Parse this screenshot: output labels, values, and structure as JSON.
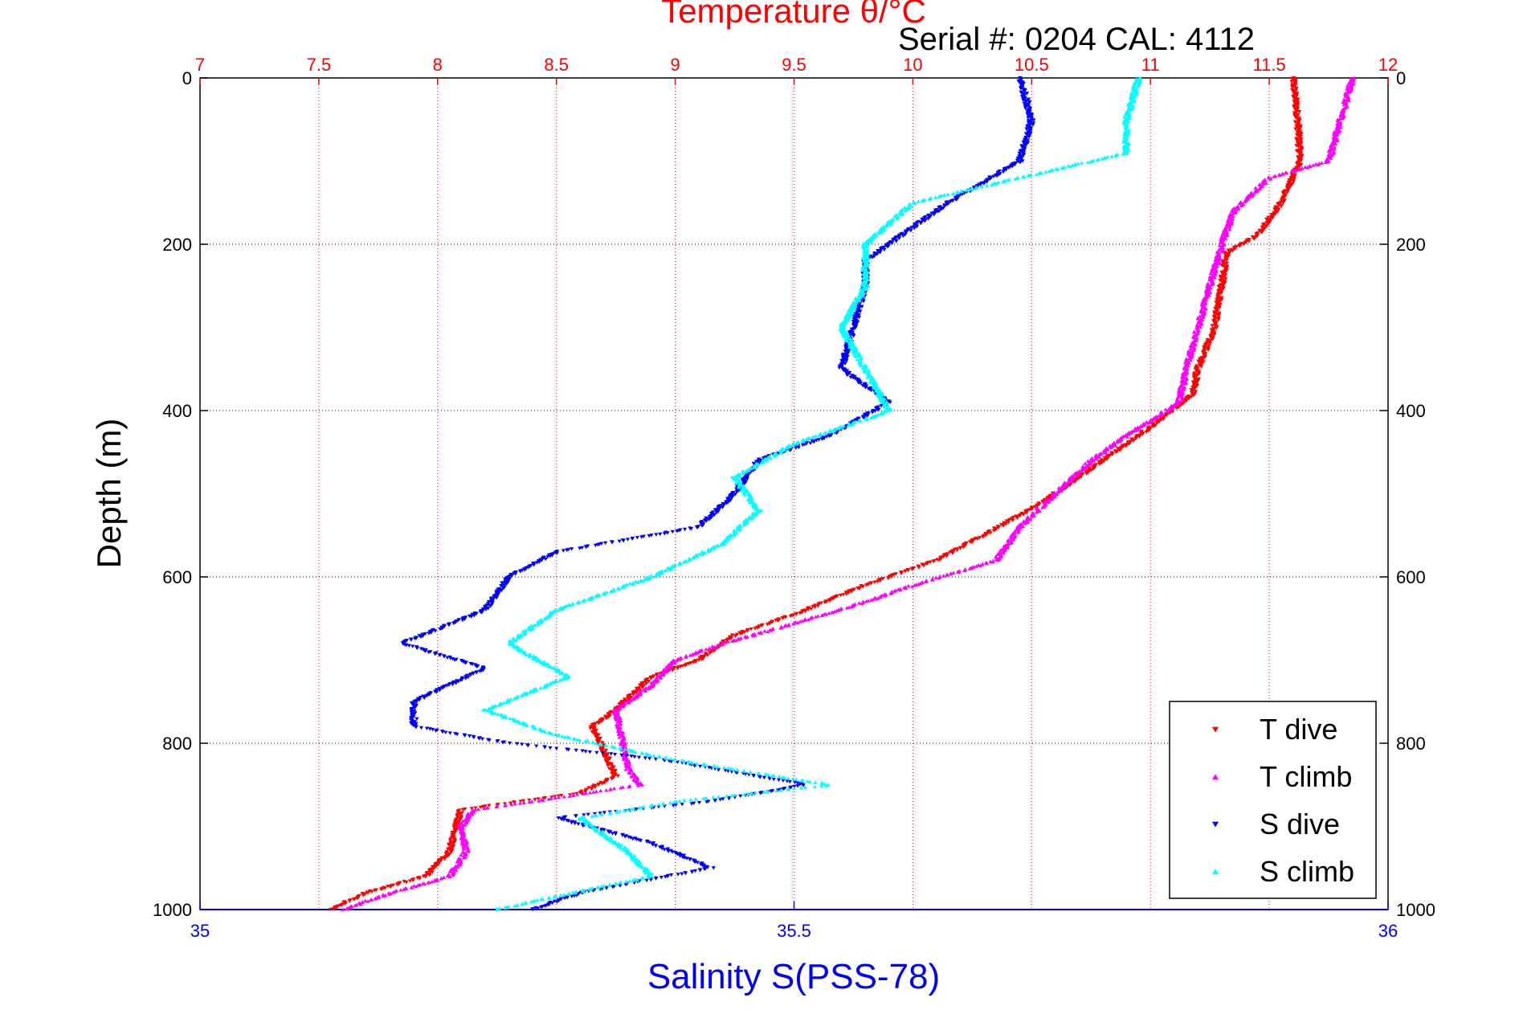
{
  "chart_data": {
    "type": "scatter",
    "title": "Temperature θ/°C",
    "subtitle": "Serial #: 0204  CAL: 4112",
    "ylabel": "Depth (m)",
    "xlabel": "Salinity S(PSS-78)",
    "top_axis": {
      "label": "Temperature θ/°C",
      "range": [
        7,
        12
      ],
      "ticks": [
        "7",
        "7.5",
        "8",
        "8.5",
        "9",
        "9.5",
        "10",
        "10.5",
        "11",
        "11.5",
        "12"
      ]
    },
    "bottom_axis": {
      "label": "Salinity S(PSS-78)",
      "range": [
        35,
        36
      ],
      "ticks": [
        "35",
        "35.5",
        "36"
      ]
    },
    "y_axis": {
      "range": [
        0,
        1000
      ],
      "reversed": true,
      "ticks": [
        "0",
        "200",
        "400",
        "600",
        "800",
        "1000"
      ]
    },
    "grid": true,
    "legend_position": "bottom-right",
    "colors": {
      "top_axis": "#ff0000",
      "bottom_axis": "#0000ff",
      "frame": "#000000"
    },
    "series": [
      {
        "name": "T dive",
        "color": "#ff0000",
        "marker": "triangle-down",
        "axis": "temperature",
        "points": [
          [
            11.6,
            0
          ],
          [
            11.62,
            50
          ],
          [
            11.63,
            100
          ],
          [
            11.55,
            150
          ],
          [
            11.45,
            190
          ],
          [
            11.32,
            210
          ],
          [
            11.3,
            250
          ],
          [
            11.27,
            300
          ],
          [
            11.2,
            350
          ],
          [
            11.18,
            380
          ],
          [
            11.0,
            420
          ],
          [
            10.8,
            460
          ],
          [
            10.55,
            510
          ],
          [
            10.3,
            550
          ],
          [
            10.1,
            580
          ],
          [
            9.8,
            610
          ],
          [
            9.55,
            640
          ],
          [
            9.25,
            670
          ],
          [
            9.1,
            700
          ],
          [
            8.9,
            720
          ],
          [
            8.75,
            760
          ],
          [
            8.65,
            780
          ],
          [
            8.7,
            810
          ],
          [
            8.75,
            840
          ],
          [
            8.6,
            860
          ],
          [
            8.1,
            880
          ],
          [
            8.08,
            900
          ],
          [
            8.05,
            930
          ],
          [
            7.95,
            960
          ],
          [
            7.7,
            980
          ],
          [
            7.55,
            1000
          ]
        ]
      },
      {
        "name": "T climb",
        "color": "#ff00ff",
        "marker": "triangle-up",
        "axis": "temperature",
        "points": [
          [
            11.85,
            0
          ],
          [
            11.8,
            50
          ],
          [
            11.75,
            100
          ],
          [
            11.5,
            120
          ],
          [
            11.35,
            160
          ],
          [
            11.3,
            200
          ],
          [
            11.25,
            250
          ],
          [
            11.2,
            300
          ],
          [
            11.15,
            350
          ],
          [
            11.12,
            390
          ],
          [
            10.9,
            430
          ],
          [
            10.75,
            460
          ],
          [
            10.6,
            500
          ],
          [
            10.45,
            540
          ],
          [
            10.35,
            580
          ],
          [
            10.0,
            610
          ],
          [
            9.8,
            630
          ],
          [
            9.45,
            660
          ],
          [
            9.2,
            680
          ],
          [
            9.0,
            700
          ],
          [
            8.9,
            730
          ],
          [
            8.75,
            760
          ],
          [
            8.78,
            800
          ],
          [
            8.8,
            830
          ],
          [
            8.85,
            850
          ],
          [
            8.4,
            870
          ],
          [
            8.15,
            880
          ],
          [
            8.1,
            900
          ],
          [
            8.12,
            930
          ],
          [
            8.05,
            960
          ],
          [
            7.8,
            980
          ],
          [
            7.6,
            1000
          ]
        ]
      },
      {
        "name": "S dive",
        "color": "#0000ff",
        "marker": "triangle-down",
        "axis": "salinity",
        "points": [
          [
            35.69,
            0
          ],
          [
            35.7,
            50
          ],
          [
            35.69,
            100
          ],
          [
            35.63,
            150
          ],
          [
            35.58,
            200
          ],
          [
            35.56,
            220
          ],
          [
            35.56,
            250
          ],
          [
            35.55,
            300
          ],
          [
            35.54,
            350
          ],
          [
            35.58,
            390
          ],
          [
            35.53,
            430
          ],
          [
            35.47,
            460
          ],
          [
            35.45,
            500
          ],
          [
            35.42,
            540
          ],
          [
            35.3,
            570
          ],
          [
            35.26,
            600
          ],
          [
            35.24,
            640
          ],
          [
            35.17,
            680
          ],
          [
            35.24,
            710
          ],
          [
            35.18,
            750
          ],
          [
            35.18,
            780
          ],
          [
            35.26,
            800
          ],
          [
            35.39,
            820
          ],
          [
            35.51,
            850
          ],
          [
            35.43,
            870
          ],
          [
            35.3,
            890
          ],
          [
            35.38,
            920
          ],
          [
            35.43,
            950
          ],
          [
            35.32,
            980
          ],
          [
            35.28,
            1000
          ]
        ]
      },
      {
        "name": "S climb",
        "color": "#00ffff",
        "marker": "triangle-up",
        "axis": "salinity",
        "points": [
          [
            35.79,
            0
          ],
          [
            35.78,
            50
          ],
          [
            35.78,
            90
          ],
          [
            35.72,
            110
          ],
          [
            35.6,
            150
          ],
          [
            35.56,
            200
          ],
          [
            35.56,
            250
          ],
          [
            35.54,
            300
          ],
          [
            35.56,
            350
          ],
          [
            35.58,
            400
          ],
          [
            35.5,
            440
          ],
          [
            35.45,
            480
          ],
          [
            35.47,
            520
          ],
          [
            35.44,
            560
          ],
          [
            35.38,
            600
          ],
          [
            35.3,
            640
          ],
          [
            35.26,
            680
          ],
          [
            35.31,
            720
          ],
          [
            35.24,
            760
          ],
          [
            35.3,
            790
          ],
          [
            35.4,
            820
          ],
          [
            35.53,
            850
          ],
          [
            35.4,
            870
          ],
          [
            35.32,
            890
          ],
          [
            35.36,
            930
          ],
          [
            35.38,
            960
          ],
          [
            35.28,
            990
          ],
          [
            35.25,
            1000
          ]
        ]
      }
    ]
  }
}
